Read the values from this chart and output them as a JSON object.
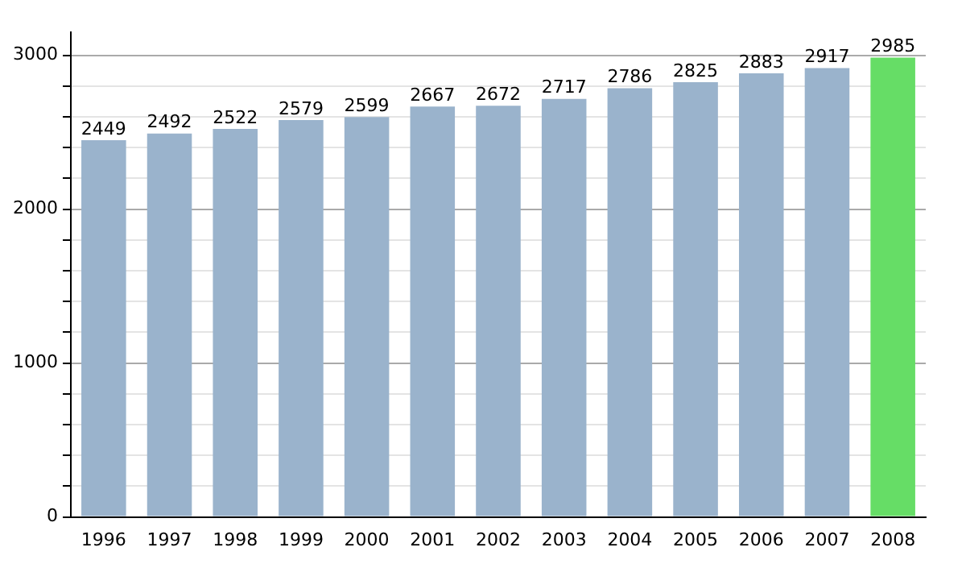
{
  "chart_data": {
    "type": "bar",
    "categories": [
      "1996",
      "1997",
      "1998",
      "1999",
      "2000",
      "2001",
      "2002",
      "2003",
      "2004",
      "2005",
      "2006",
      "2007",
      "2008"
    ],
    "values": [
      2449,
      2492,
      2522,
      2579,
      2599,
      2667,
      2672,
      2717,
      2786,
      2825,
      2883,
      2917,
      2985
    ],
    "colors": [
      "#9ab3cc",
      "#9ab3cc",
      "#9ab3cc",
      "#9ab3cc",
      "#9ab3cc",
      "#9ab3cc",
      "#9ab3cc",
      "#9ab3cc",
      "#9ab3cc",
      "#9ab3cc",
      "#9ab3cc",
      "#9ab3cc",
      "#66dd66"
    ],
    "ylim": [
      0,
      3150
    ],
    "yticks": [
      0,
      {
        "value": 200,
        "label": null
      },
      {
        "value": 400,
        "label": null
      },
      {
        "value": 600,
        "label": null
      },
      {
        "value": 800,
        "label": null
      },
      1000,
      {
        "value": 1200,
        "label": null
      },
      {
        "value": 1400,
        "label": null
      },
      {
        "value": 1600,
        "label": null
      },
      {
        "value": 1800,
        "label": null
      },
      2000,
      {
        "value": 2200,
        "label": null
      },
      {
        "value": 2400,
        "label": null
      },
      {
        "value": 2600,
        "label": null
      },
      {
        "value": 2800,
        "label": null
      },
      3000
    ],
    "grid": "y",
    "data_labels": true,
    "legend": false
  }
}
